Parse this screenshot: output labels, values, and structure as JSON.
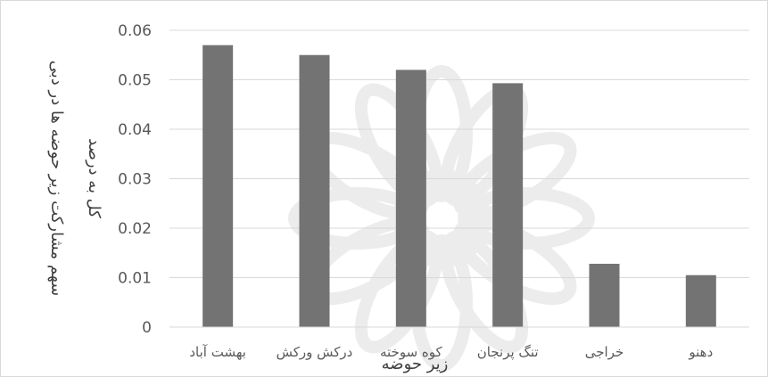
{
  "chart_data": {
    "type": "bar",
    "title": "",
    "xlabel": "زیر حوضه",
    "ylabel": "سهم مشارکت زیر حوضه ها در دبی کل به درصد",
    "ylabel_lines": [
      "سهم مشارکت زیر حوضه ها در دبی",
      "کل به درصد"
    ],
    "categories": [
      "بهشت آباد",
      "درکش ورکش",
      "کوه سوخته",
      "تنگ پرنجان",
      "خراجی",
      "دهنو"
    ],
    "values": [
      0.057,
      0.055,
      0.052,
      0.0493,
      0.0128,
      0.0105
    ],
    "ylim": [
      0,
      0.06
    ],
    "yticks": [
      "0",
      "0.01",
      "0.02",
      "0.03",
      "0.04",
      "0.05",
      "0.06"
    ],
    "grid": true,
    "legend": "none",
    "bar_color": "#737373",
    "grid_color": "#d9d9d9",
    "text_color": "#595959"
  }
}
